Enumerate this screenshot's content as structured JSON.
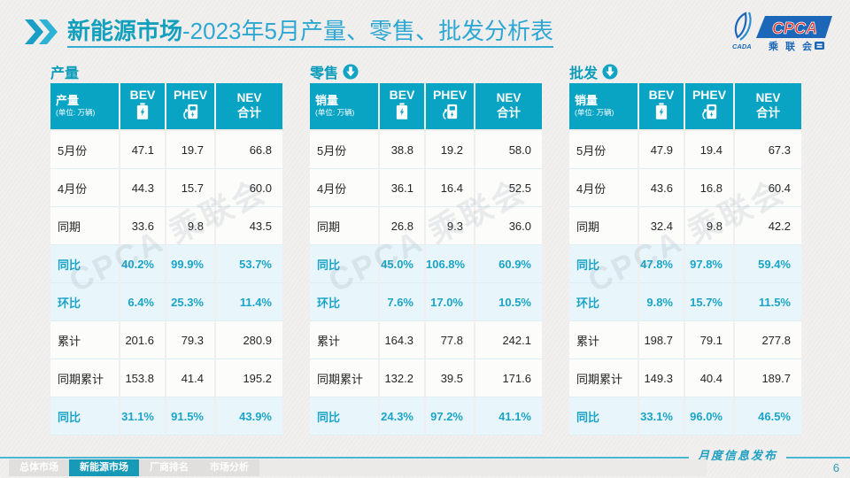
{
  "title": {
    "part1": "新能源市场",
    "part2": "-2023年5月产量、零售、批发分析表"
  },
  "logo": {
    "cpca": "CPCA",
    "cada": "CADA",
    "association": "乘联会"
  },
  "watermark": "CPCA 乘联会",
  "colors": {
    "accent_teal": "#09a3c3",
    "highlight_row_bg": "#e8f6fb",
    "highlight_text": "#1ba4c8",
    "title_blue": "#2ea7d3",
    "logo_blue": "#1c67b8",
    "logo_red": "#e03a30",
    "active_tab": "#1799b8"
  },
  "chart_data": [
    {
      "type": "table",
      "title": "产量",
      "has_arrow": false,
      "header": {
        "label": "产量",
        "unit": "(单位: 万辆)",
        "columns": [
          "BEV",
          "PHEV",
          "NEV\n合计"
        ]
      },
      "rows": [
        {
          "label": "5月份",
          "values": [
            "47.1",
            "19.7",
            "66.8"
          ],
          "highlight": false
        },
        {
          "label": "4月份",
          "values": [
            "44.3",
            "15.7",
            "60.0"
          ],
          "highlight": false
        },
        {
          "label": "同期",
          "values": [
            "33.6",
            "9.8",
            "43.5"
          ],
          "highlight": false
        },
        {
          "label": "同比",
          "values": [
            "40.2%",
            "99.9%",
            "53.7%"
          ],
          "highlight": true
        },
        {
          "label": "环比",
          "values": [
            "6.4%",
            "25.3%",
            "11.4%"
          ],
          "highlight": true
        },
        {
          "label": "累计",
          "values": [
            "201.6",
            "79.3",
            "280.9"
          ],
          "highlight": false
        },
        {
          "label": "同期累计",
          "values": [
            "153.8",
            "41.4",
            "195.2"
          ],
          "highlight": false
        },
        {
          "label": "同比",
          "values": [
            "31.1%",
            "91.5%",
            "43.9%"
          ],
          "highlight": true
        }
      ]
    },
    {
      "type": "table",
      "title": "零售",
      "has_arrow": true,
      "header": {
        "label": "销量",
        "unit": "(单位: 万辆)",
        "columns": [
          "BEV",
          "PHEV",
          "NEV\n合计"
        ]
      },
      "rows": [
        {
          "label": "5月份",
          "values": [
            "38.8",
            "19.2",
            "58.0"
          ],
          "highlight": false
        },
        {
          "label": "4月份",
          "values": [
            "36.1",
            "16.4",
            "52.5"
          ],
          "highlight": false
        },
        {
          "label": "同期",
          "values": [
            "26.8",
            "9.3",
            "36.0"
          ],
          "highlight": false
        },
        {
          "label": "同比",
          "values": [
            "45.0%",
            "106.8%",
            "60.9%"
          ],
          "highlight": true
        },
        {
          "label": "环比",
          "values": [
            "7.6%",
            "17.0%",
            "10.5%"
          ],
          "highlight": true
        },
        {
          "label": "累计",
          "values": [
            "164.3",
            "77.8",
            "242.1"
          ],
          "highlight": false
        },
        {
          "label": "同期累计",
          "values": [
            "132.2",
            "39.5",
            "171.6"
          ],
          "highlight": false
        },
        {
          "label": "同比",
          "values": [
            "24.3%",
            "97.2%",
            "41.1%"
          ],
          "highlight": true
        }
      ]
    },
    {
      "type": "table",
      "title": "批发",
      "has_arrow": true,
      "header": {
        "label": "销量",
        "unit": "(单位: 万辆)",
        "columns": [
          "BEV",
          "PHEV",
          "NEV\n合计"
        ]
      },
      "rows": [
        {
          "label": "5月份",
          "values": [
            "47.9",
            "19.4",
            "67.3"
          ],
          "highlight": false
        },
        {
          "label": "4月份",
          "values": [
            "43.6",
            "16.8",
            "60.4"
          ],
          "highlight": false
        },
        {
          "label": "同期",
          "values": [
            "32.4",
            "9.8",
            "42.2"
          ],
          "highlight": false
        },
        {
          "label": "同比",
          "values": [
            "47.8%",
            "97.8%",
            "59.4%"
          ],
          "highlight": true
        },
        {
          "label": "环比",
          "values": [
            "9.8%",
            "15.7%",
            "11.5%"
          ],
          "highlight": true
        },
        {
          "label": "累计",
          "values": [
            "198.7",
            "79.1",
            "277.8"
          ],
          "highlight": false
        },
        {
          "label": "同期累计",
          "values": [
            "149.3",
            "40.4",
            "189.7"
          ],
          "highlight": false
        },
        {
          "label": "同比",
          "values": [
            "33.1%",
            "96.0%",
            "46.5%"
          ],
          "highlight": true
        }
      ]
    }
  ],
  "footer": {
    "tabs": [
      {
        "label": "总体市场",
        "active": false
      },
      {
        "label": "新能源市场",
        "active": true
      },
      {
        "label": "厂商排名",
        "active": false
      },
      {
        "label": "市场分析",
        "active": false
      }
    ],
    "note": "月度信息发布",
    "page_number": "6"
  }
}
